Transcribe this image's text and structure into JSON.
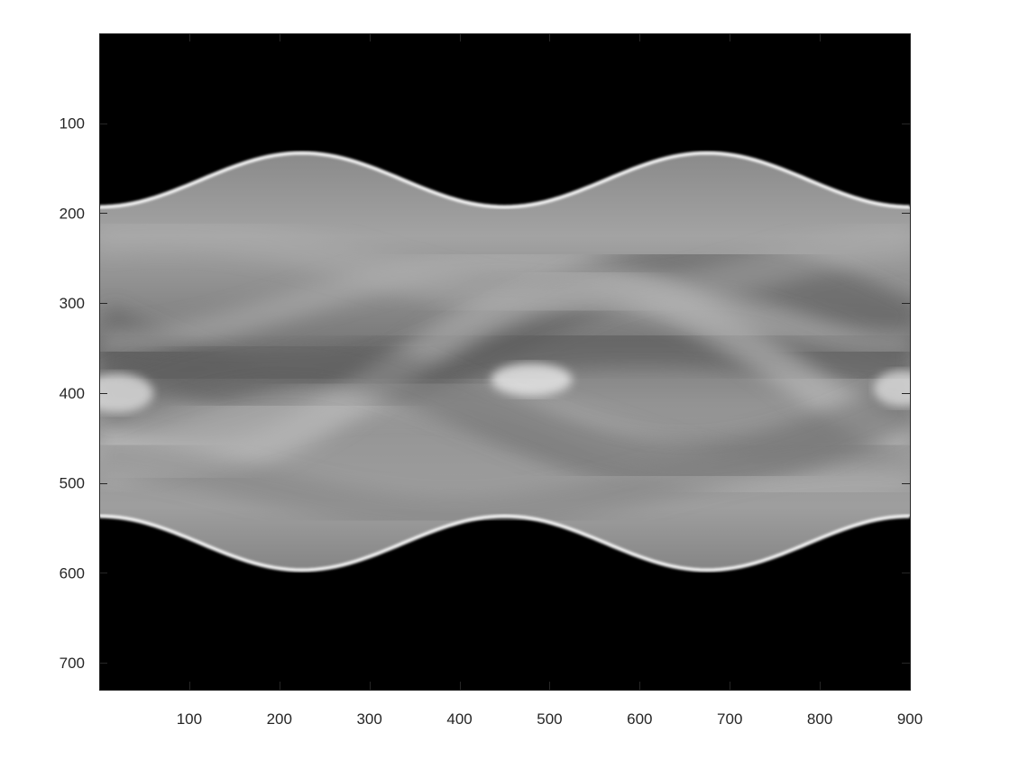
{
  "chart_data": {
    "type": "heatmap",
    "title": "",
    "xlabel": "",
    "ylabel": "",
    "colormap": "gray",
    "background": "#000000",
    "xlim": [
      0,
      900
    ],
    "ylim": [
      730,
      0
    ],
    "y_axis_direction": "reverse",
    "grid": false,
    "box": true,
    "x_ticks": [
      100,
      200,
      300,
      400,
      500,
      600,
      700,
      800,
      900
    ],
    "x_tick_labels": [
      "100",
      "200",
      "300",
      "400",
      "500",
      "600",
      "700",
      "800",
      "900"
    ],
    "y_ticks": [
      100,
      200,
      300,
      400,
      500,
      600,
      700
    ],
    "y_tick_labels": [
      "100",
      "200",
      "300",
      "400",
      "500",
      "600",
      "700"
    ],
    "upper_envelope": {
      "x": [
        0,
        75,
        150,
        225,
        300,
        375,
        450,
        525,
        600,
        675,
        750,
        825,
        900
      ],
      "y": [
        193,
        175,
        146,
        133,
        146,
        175,
        193,
        175,
        146,
        133,
        146,
        175,
        193
      ]
    },
    "lower_envelope": {
      "x": [
        0,
        75,
        150,
        225,
        300,
        375,
        450,
        525,
        600,
        675,
        750,
        825,
        900
      ],
      "y": [
        537,
        553,
        582,
        597,
        582,
        553,
        537,
        553,
        582,
        597,
        582,
        553,
        537
      ]
    }
  }
}
